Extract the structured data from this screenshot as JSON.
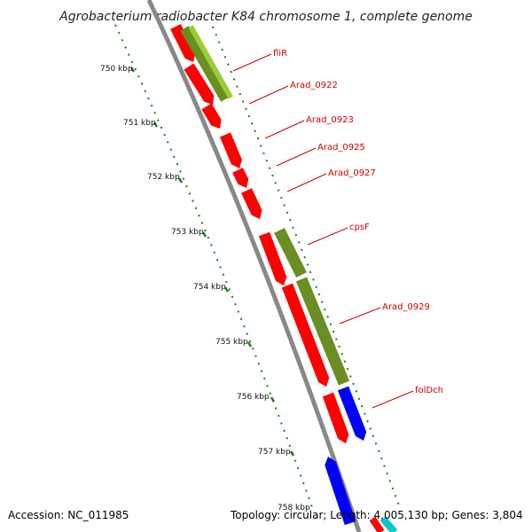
{
  "title": "Agrobacterium radiobacter K84 chromosome 1, complete genome",
  "footer": {
    "accession": "Accession: NC_011985",
    "summary": "Topology: circular; Length: 4,005,130 bp; Genes: 3,804"
  },
  "ruler": {
    "labels": [
      "750 kbp",
      "751 kbp",
      "752 kbp",
      "753 kbp",
      "754 kbp",
      "755 kbp",
      "756 kbp",
      "757 kbp",
      "758 kbp"
    ]
  },
  "gene_labels": [
    "fliR",
    "Arad_0922",
    "Arad_0923",
    "Arad_0925",
    "Arad_0927",
    "cpsF",
    "Arad_0929",
    "folDch"
  ],
  "colors": {
    "cds": "#ff0000",
    "gc_green": "#6b8e23",
    "gc_lime": "#9acd32",
    "blue": "#0000ff",
    "cyan": "#00cccc",
    "backbone": "#888888",
    "tick": "#1a7f1a"
  }
}
